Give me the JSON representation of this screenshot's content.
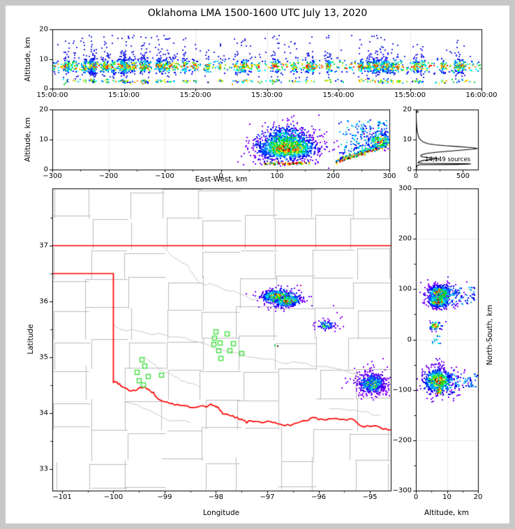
{
  "title": "Oklahoma LMA 1500-1600 UTC July 13, 2020",
  "colors": {
    "background": "#ffffff",
    "frame": "#c8c8c8",
    "axis": "#000000",
    "grid": "#e9e9e9",
    "county_line": "#bcbcbc",
    "river_line": "#c9c9c9",
    "state_border": "#ff0000",
    "station_marker": "#3fe03f",
    "histogram_line": "#000000",
    "palettes": {
      "hot": [
        "#7a00ff",
        "#0000ee",
        "#0055ff",
        "#00aaff",
        "#00e6dd",
        "#00d92e",
        "#8ce600",
        "#ffee00",
        "#ff9900",
        "#ff2a00",
        "#c80000",
        "#1e1e1e"
      ],
      "cool": [
        "#8800ff",
        "#6a00f0",
        "#3300ff",
        "#0055ff",
        "#00aaff",
        "#00e0cc",
        "#00d92e",
        "#a0e600",
        "#ffcc00",
        "#ff8800"
      ],
      "time": [
        "#2a2ae6",
        "#0000ff",
        "#0066ff",
        "#00bbff",
        "#00ffff",
        "#00d92e",
        "#8ce600",
        "#ffee00",
        "#ff9100",
        "#ff1e00"
      ],
      "warm_mix": [
        "#ff2a00",
        "#c80000",
        "#ff9900",
        "#161616",
        "#9a9a9a",
        "#00d92e",
        "#ffee00",
        "#00aaff"
      ]
    }
  },
  "panels": {
    "time_height": {
      "ylabel": "Altitude, km"
    },
    "ew_height": {
      "xlabel": "East-West, km",
      "ylabel": "Altitude, km"
    },
    "histogram": {
      "annotation": "14,149 sources"
    },
    "map": {
      "xlabel": "Longitude",
      "ylabel": "Latitude"
    },
    "ns_height": {
      "xlabel": "Altitude, km",
      "ylabel": "North-South, km"
    }
  },
  "chart_data": [
    {
      "type": "scatter",
      "panel": "time_height",
      "ylabel": "Altitude, km",
      "xlim": [
        0,
        3600
      ],
      "ylim": [
        0,
        20
      ],
      "xtick_seconds": [
        0,
        600,
        1200,
        1800,
        2400,
        3000,
        3600
      ],
      "xtick_labels": [
        "15:00:00",
        "15:10:00",
        "15:20:00",
        "15:30:00",
        "15:40:00",
        "15:50:00",
        "16:00:00"
      ],
      "ytick_vals": [
        0,
        10,
        20
      ],
      "grid": true,
      "distribution": {
        "description": "VHF lightning sources vs time, dense band 5-10 km all hour in vertical flash streaks, sparse points 2-19 km",
        "streak_count": 58,
        "points_total": 2900,
        "main_band_alt_mean": 7.4,
        "main_band_alt_sd": 1.15,
        "upper_band_alt_mean": 9.8,
        "low_band_alt_mean": 2.45,
        "alt_range": [
          0.6,
          19.4
        ]
      }
    },
    {
      "type": "scatter",
      "panel": "ew_height",
      "xlabel": "East-West, km",
      "ylabel": "Altitude, km",
      "xlim": [
        -300,
        300
      ],
      "ylim": [
        0,
        20
      ],
      "xtick_vals": [
        -300,
        -200,
        -100,
        0,
        100,
        200,
        300
      ],
      "xtick_minor_step": 50,
      "ytick_vals": [
        0,
        10,
        20
      ],
      "grid": true,
      "clusters": [
        {
          "kind": "gauss",
          "cx": 118,
          "cy": 7.2,
          "sx": 26,
          "sy": 1.9,
          "n": 1150,
          "palette": "hot",
          "base": 0.55,
          "gain": 0.6,
          "specks": true
        },
        {
          "kind": "gauss",
          "cx": 116,
          "cy": 8.0,
          "sx": 36,
          "sy": 3.3,
          "n": 230,
          "palette": "hot",
          "cap": 6,
          "base": 0.3,
          "gain": 0.5
        },
        {
          "kind": "plume",
          "cx": 115,
          "cy": 9.5,
          "sx": 22,
          "sy": 2.7,
          "n": 240,
          "palette": "hot",
          "cap": 6,
          "base": 0.25,
          "gain": 0.5
        },
        {
          "kind": "strip",
          "x0": 76,
          "x1": 158,
          "cy": 2.0,
          "sy": 0.22,
          "n": 95
        },
        {
          "kind": "ridge",
          "x0": 205,
          "z0": 2.6,
          "x1": 300,
          "z1": 8.5,
          "sz": 0.33,
          "n": 280
        },
        {
          "kind": "wedge",
          "x0": 208,
          "x1": 300,
          "rx0": 205,
          "rz0": 2.6,
          "rx1": 300,
          "rz1": 8.5,
          "top": 16,
          "n": 310
        },
        {
          "kind": "gauss",
          "cx": 283,
          "cy": 9.6,
          "sx": 11,
          "sy": 1.5,
          "n": 110,
          "palette": "hot",
          "cap": 10,
          "base": 0.45,
          "gain": 0.55
        }
      ]
    },
    {
      "type": "line",
      "panel": "histogram",
      "annotation": "14,149 sources",
      "xlim": [
        0,
        660
      ],
      "ylim": [
        0,
        20
      ],
      "xtick_vals": [
        0,
        500
      ],
      "xtick_minor_step": 250,
      "ytick_vals": [
        0,
        10,
        20
      ],
      "profile_alt_value": [
        [
          0,
          5
        ],
        [
          0.9,
          8
        ],
        [
          1.4,
          14
        ],
        [
          1.62,
          40
        ],
        [
          1.72,
          430
        ],
        [
          1.86,
          585
        ],
        [
          1.98,
          555
        ],
        [
          2.08,
          70
        ],
        [
          2.25,
          22
        ],
        [
          2.6,
          30
        ],
        [
          3.0,
          72
        ],
        [
          3.35,
          150
        ],
        [
          3.6,
          235
        ],
        [
          3.82,
          205
        ],
        [
          4.05,
          115
        ],
        [
          4.3,
          58
        ],
        [
          4.7,
          52
        ],
        [
          5.05,
          72
        ],
        [
          5.4,
          122
        ],
        [
          5.75,
          210
        ],
        [
          6.1,
          340
        ],
        [
          6.5,
          495
        ],
        [
          6.8,
          600
        ],
        [
          7.0,
          648
        ],
        [
          7.2,
          628
        ],
        [
          7.45,
          545
        ],
        [
          7.7,
          430
        ],
        [
          7.95,
          310
        ],
        [
          8.25,
          205
        ],
        [
          8.6,
          132
        ],
        [
          9.0,
          92
        ],
        [
          9.5,
          64
        ],
        [
          10.0,
          46
        ],
        [
          10.6,
          33
        ],
        [
          11.3,
          25
        ],
        [
          12.1,
          18
        ],
        [
          13.0,
          13
        ],
        [
          14.0,
          9
        ],
        [
          15.0,
          7
        ],
        [
          16.0,
          5
        ],
        [
          17.0,
          4
        ],
        [
          18.0,
          3
        ],
        [
          18.9,
          3
        ],
        [
          19.25,
          24
        ],
        [
          19.55,
          8
        ],
        [
          20.0,
          2
        ]
      ]
    },
    {
      "type": "scatter",
      "panel": "map",
      "xlabel": "Longitude",
      "ylabel": "Latitude",
      "xlim": [
        -101.19,
        -94.592
      ],
      "ylim": [
        32.6125,
        38.025
      ],
      "xtick_vals": [
        -101,
        -100,
        -99,
        -98,
        -97,
        -96,
        -95
      ],
      "ytick_vals": [
        33,
        34,
        35,
        36,
        37
      ],
      "minor_step": 0.5,
      "state_border": {
        "north_lat": 37.0,
        "panhandle_lat": 36.5,
        "west_lon": -100.0,
        "red_river": [
          [
            -100,
            34.56
          ],
          [
            -99.93,
            34.55
          ],
          [
            -99.85,
            34.5
          ],
          [
            -99.75,
            34.44
          ],
          [
            -99.65,
            34.4
          ],
          [
            -99.55,
            34.42
          ],
          [
            -99.47,
            34.46
          ],
          [
            -99.38,
            34.46
          ],
          [
            -99.3,
            34.4
          ],
          [
            -99.22,
            34.36
          ],
          [
            -99.13,
            34.25
          ],
          [
            -99.0,
            34.21
          ],
          [
            -98.85,
            34.16
          ],
          [
            -98.7,
            34.14
          ],
          [
            -98.55,
            34.12
          ],
          [
            -98.45,
            34.09
          ],
          [
            -98.35,
            34.13
          ],
          [
            -98.2,
            34.11
          ],
          [
            -98.1,
            34.15
          ],
          [
            -98.0,
            34.12
          ],
          [
            -97.95,
            34.09
          ],
          [
            -97.87,
            34.0
          ],
          [
            -97.75,
            33.97
          ],
          [
            -97.63,
            33.93
          ],
          [
            -97.5,
            33.89
          ],
          [
            -97.4,
            33.84
          ],
          [
            -97.28,
            33.86
          ],
          [
            -97.15,
            33.83
          ],
          [
            -97.0,
            33.86
          ],
          [
            -96.85,
            33.82
          ],
          [
            -96.7,
            33.8
          ],
          [
            -96.55,
            33.78
          ],
          [
            -96.4,
            33.82
          ],
          [
            -96.25,
            33.87
          ],
          [
            -96.1,
            33.92
          ],
          [
            -95.95,
            33.88
          ],
          [
            -95.8,
            33.9
          ],
          [
            -95.65,
            33.91
          ],
          [
            -95.5,
            33.88
          ],
          [
            -95.35,
            33.9
          ],
          [
            -95.2,
            33.78
          ],
          [
            -95.05,
            33.76
          ],
          [
            -94.9,
            33.77
          ],
          [
            -94.75,
            33.72
          ],
          [
            -94.592,
            33.7
          ]
        ]
      },
      "stations": [
        [
          -99.45,
          34.96
        ],
        [
          -99.39,
          34.85
        ],
        [
          -99.54,
          34.74
        ],
        [
          -99.33,
          34.66
        ],
        [
          -99.5,
          34.59
        ],
        [
          -99.42,
          34.51
        ],
        [
          -99.07,
          34.69
        ],
        [
          -98.0,
          35.46
        ],
        [
          -97.79,
          35.43
        ],
        [
          -98.04,
          35.35
        ],
        [
          -98.05,
          35.24
        ],
        [
          -97.92,
          35.26
        ],
        [
          -97.66,
          35.25
        ],
        [
          -97.95,
          35.12
        ],
        [
          -97.74,
          35.13
        ],
        [
          -97.5,
          35.08
        ],
        [
          -97.91,
          34.99
        ]
      ],
      "clusters": [
        {
          "kind": "gauss",
          "cx": -96.82,
          "cy": 36.1,
          "sx": 0.13,
          "sy": 0.05,
          "n": 480,
          "palette": "hot",
          "base": 0.55,
          "gain": 0.6,
          "specks": true
        },
        {
          "kind": "gauss",
          "cx": -96.6,
          "cy": 36.0,
          "sx": 0.12,
          "sy": 0.045,
          "n": 430,
          "palette": "hot",
          "base": 0.55,
          "gain": 0.6,
          "specks": true,
          "tilt": 0.1
        },
        {
          "kind": "gauss",
          "cx": -96.72,
          "cy": 36.06,
          "sx": 0.22,
          "sy": 0.095,
          "n": 150,
          "palette": "hot",
          "cap": 6,
          "base": 0.3,
          "gain": 0.45
        },
        {
          "kind": "gauss",
          "cx": -95.86,
          "cy": 35.57,
          "sx": 0.085,
          "sy": 0.038,
          "n": 60,
          "palette": "cool",
          "base": 0.45,
          "gain": 0.55
        },
        {
          "kind": "gauss",
          "cx": -95.86,
          "cy": 35.58,
          "sx": 0.13,
          "sy": 0.06,
          "n": 35,
          "palette": "cool",
          "cap": 4,
          "base": 0.3,
          "gain": 0.4
        },
        {
          "kind": "gauss",
          "cx": -94.96,
          "cy": 34.52,
          "sx": 0.135,
          "sy": 0.092,
          "n": 430,
          "palette": "cool",
          "base": 0.5,
          "gain": 0.55
        },
        {
          "kind": "gauss",
          "cx": -94.98,
          "cy": 34.55,
          "sx": 0.2,
          "sy": 0.13,
          "n": 150,
          "palette": "cool",
          "cap": 4,
          "base": 0.3,
          "gain": 0.4
        }
      ],
      "specks": [
        [
          -96.85,
          35.21,
          "#00cc22"
        ],
        [
          -96.8,
          35.2,
          "#161616"
        ],
        [
          -96.35,
          36.29,
          "#cc00cc"
        ],
        [
          -95.64,
          35.8,
          "#8800ff"
        ],
        [
          -95.71,
          35.93,
          "#8800ff"
        ],
        [
          -95.55,
          35.73,
          "#aa00ff"
        ],
        [
          -96.06,
          35.63,
          "#8800ff"
        ],
        [
          -95.3,
          34.8,
          "#8800ff"
        ],
        [
          -95.12,
          34.82,
          "#8800ff"
        ],
        [
          -94.93,
          34.86,
          "#7700ee"
        ],
        [
          -95.47,
          34.63,
          "#8800ff"
        ],
        [
          -95.24,
          34.72,
          "#8800ff"
        ],
        [
          -94.7,
          34.78,
          "#8800ff"
        ],
        [
          -95.55,
          34.45,
          "#8800ff"
        ]
      ]
    },
    {
      "type": "scatter",
      "panel": "ns_height",
      "xlabel": "Altitude, km",
      "ylabel": "North-South, km",
      "xlim": [
        0,
        20
      ],
      "ylim": [
        -300,
        300
      ],
      "xtick_vals": [
        0,
        10,
        20
      ],
      "xtick_minor_step": 5,
      "ytick_vals": [
        -300,
        -200,
        -100,
        0,
        100,
        200,
        300
      ],
      "ytick_minor_step": 50,
      "grid": true,
      "clusters": [
        {
          "kind": "gaussYZ",
          "cy": 93,
          "cz": 7.6,
          "sy": 7,
          "sz": 1.7,
          "n": 430,
          "palette": "hot",
          "base": 0.55,
          "gain": 0.6,
          "specks": true
        },
        {
          "kind": "gaussYZ",
          "cy": 76,
          "cz": 7.1,
          "sy": 6,
          "sz": 1.6,
          "n": 380,
          "palette": "hot",
          "base": 0.55,
          "gain": 0.6,
          "specks": true
        },
        {
          "kind": "gaussYZ",
          "cy": 86,
          "cz": 8.6,
          "sy": 13,
          "sz": 3.2,
          "n": 190,
          "palette": "hot",
          "cap": 6,
          "base": 0.3,
          "gain": 0.45
        },
        {
          "kind": "gaussYZ",
          "cy": 27,
          "cz": 6.3,
          "sy": 4.5,
          "sz": 1.1,
          "n": 60,
          "palette": "hot",
          "cap": 11,
          "base": 0.5,
          "gain": 0.55
        },
        {
          "kind": "gaussYZ",
          "cy": -82,
          "cz": 7.0,
          "sy": 11,
          "sz": 2.1,
          "n": 560,
          "palette": "hot",
          "base": 0.55,
          "gain": 0.6,
          "specks": true
        },
        {
          "kind": "gaussYZ",
          "cy": -84,
          "cz": 8.0,
          "sy": 16,
          "sz": 3.2,
          "n": 170,
          "palette": "hot",
          "cap": 6,
          "base": 0.3,
          "gain": 0.45
        },
        {
          "kind": "boxYZ",
          "y0": -108,
          "y1": -96,
          "z0": 6.9,
          "z1": 8.1,
          "n": 26,
          "colors": [
            "#ffee00",
            "#ff9900",
            "#ff2a00",
            "#00d92e"
          ]
        },
        {
          "kind": "boxYZ",
          "y0": 70,
          "y1": 105,
          "z0": 11,
          "z1": 19,
          "n": 48,
          "colors": [
            "#0000ee",
            "#0055ff",
            "#00aaff"
          ]
        },
        {
          "kind": "boxYZ",
          "y0": -95,
          "y1": -68,
          "z0": 10,
          "z1": 20,
          "n": 62,
          "colors": [
            "#0000ee",
            "#0055ff",
            "#00aaff"
          ]
        },
        {
          "kind": "boxYZ",
          "y0": -60,
          "y1": -35,
          "z0": 4,
          "z1": 9,
          "n": 18,
          "colors": [
            "#8800ff",
            "#6a00f0",
            "#3300ff"
          ]
        },
        {
          "kind": "boxYZ",
          "y0": -8,
          "y1": 8,
          "z0": 5,
          "z1": 8,
          "n": 13,
          "colors": [
            "#0055ff",
            "#00aaff",
            "#00d92e",
            "#00e6dd"
          ]
        }
      ]
    }
  ]
}
